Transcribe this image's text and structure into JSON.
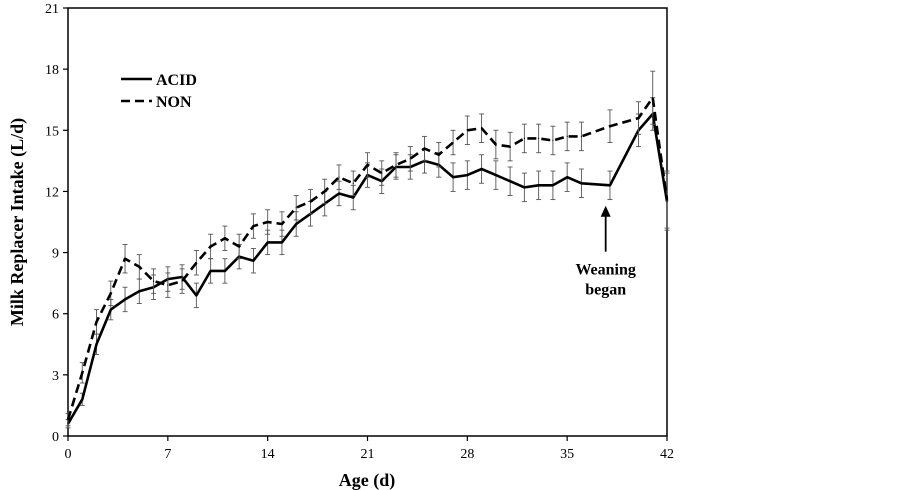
{
  "chart_data": {
    "type": "line",
    "title": "",
    "xlabel": "Age (d)",
    "ylabel": "Milk Replacer Intake (L/d)",
    "xlim": [
      0,
      42
    ],
    "ylim": [
      0,
      21
    ],
    "xticks": [
      0,
      7,
      14,
      21,
      28,
      35,
      42
    ],
    "yticks": [
      0,
      3,
      6,
      9,
      12,
      15,
      18,
      21
    ],
    "grid": false,
    "legend_position": "top-left",
    "x": [
      0,
      1,
      2,
      3,
      4,
      5,
      6,
      7,
      8,
      9,
      10,
      11,
      12,
      13,
      14,
      15,
      16,
      17,
      18,
      19,
      20,
      21,
      22,
      23,
      24,
      25,
      26,
      27,
      28,
      29,
      30,
      31,
      32,
      33,
      34,
      35,
      36,
      38,
      40,
      41,
      42
    ],
    "series": [
      {
        "name": "ACID",
        "line_style": "solid",
        "color": "#000000",
        "values": [
          0.6,
          1.8,
          4.5,
          6.2,
          6.7,
          7.1,
          7.3,
          7.7,
          7.8,
          6.9,
          8.1,
          8.1,
          8.8,
          8.6,
          9.5,
          9.5,
          10.4,
          10.9,
          11.4,
          11.9,
          11.7,
          12.8,
          12.5,
          13.2,
          13.2,
          13.5,
          13.3,
          12.7,
          12.8,
          13.1,
          12.8,
          12.5,
          12.2,
          12.3,
          12.3,
          12.7,
          12.4,
          12.3,
          15.0,
          15.8,
          11.5
        ],
        "error": [
          0.2,
          0.3,
          0.5,
          0.5,
          0.6,
          0.6,
          0.6,
          0.6,
          0.6,
          0.6,
          0.6,
          0.6,
          0.6,
          0.6,
          0.6,
          0.6,
          0.6,
          0.6,
          0.6,
          0.6,
          0.6,
          0.6,
          0.6,
          0.6,
          0.6,
          0.6,
          0.6,
          0.7,
          0.7,
          0.7,
          0.7,
          0.7,
          0.7,
          0.7,
          0.7,
          0.7,
          0.7,
          0.7,
          0.8,
          0.8,
          1.4
        ]
      },
      {
        "name": "NON",
        "line_style": "dashed",
        "color": "#000000",
        "values": [
          0.8,
          3.1,
          5.6,
          7.0,
          8.7,
          8.3,
          7.6,
          7.4,
          7.6,
          8.5,
          9.3,
          9.7,
          9.3,
          10.3,
          10.5,
          10.4,
          11.2,
          11.5,
          12.0,
          12.7,
          12.4,
          13.3,
          12.9,
          13.3,
          13.6,
          14.1,
          13.8,
          14.4,
          15.0,
          15.1,
          14.3,
          14.2,
          14.6,
          14.6,
          14.5,
          14.7,
          14.7,
          15.2,
          15.6,
          16.6,
          11.6
        ],
        "error": [
          0.3,
          0.5,
          0.6,
          0.6,
          0.7,
          0.6,
          0.6,
          0.6,
          0.6,
          0.6,
          0.6,
          0.6,
          0.6,
          0.6,
          0.6,
          0.6,
          0.6,
          0.6,
          0.6,
          0.6,
          0.6,
          0.6,
          0.6,
          0.6,
          0.6,
          0.6,
          0.6,
          0.6,
          0.7,
          0.7,
          0.7,
          0.7,
          0.7,
          0.7,
          0.7,
          0.7,
          0.7,
          0.8,
          0.8,
          1.3,
          1.4
        ]
      }
    ],
    "annotations": [
      {
        "text_lines": [
          "Weaning",
          "began"
        ],
        "arrow_x": 37.7,
        "arrow_y": 11.3
      }
    ]
  }
}
